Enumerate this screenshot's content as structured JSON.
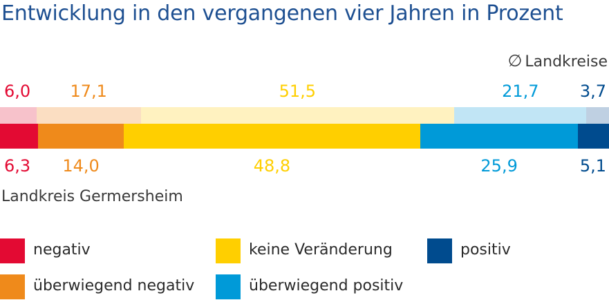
{
  "chart_data": {
    "type": "bar",
    "orientation": "horizontal-stacked-100",
    "title": "Entwicklung in den vergangenen vier Jahren in Prozent",
    "unit": "Prozent",
    "categories": [
      "negativ",
      "überwiegend negativ",
      "keine Veränderung",
      "überwiegend positiv",
      "positiv"
    ],
    "series": [
      {
        "name": "Landkreis Germersheim",
        "values": [
          6.3,
          14.0,
          48.8,
          25.9,
          5.1
        ],
        "labels": [
          "6,3",
          "14,0",
          "48,8",
          "25,9",
          "5,1"
        ]
      },
      {
        "name": "Ø Landkreise",
        "values": [
          6.0,
          17.1,
          51.5,
          21.7,
          3.7
        ],
        "labels": [
          "6,0",
          "17,1",
          "51,5",
          "21,7",
          "3,7"
        ]
      }
    ],
    "legend": "bottom",
    "grid": false
  },
  "labels": {
    "reference_symbol": "∅",
    "reference_text": "Landkreise",
    "region": "Landkreis Germersheim"
  },
  "colors": {
    "main": [
      "#e30a33",
      "#ef8a1b",
      "#ffcf00",
      "#009ad8",
      "#004b8e"
    ],
    "reference": [
      "#f7c2cb",
      "#fbdec2",
      "#fff2c0",
      "#c1e5f5",
      "#bfd0e2"
    ],
    "title": "#1d4f91"
  },
  "legend_items": [
    {
      "label": "negativ",
      "color": "#e30a33"
    },
    {
      "label": "keine Veränderung",
      "color": "#ffcf00"
    },
    {
      "label": "positiv",
      "color": "#004b8e"
    },
    {
      "label": "überwiegend negativ",
      "color": "#ef8a1b"
    },
    {
      "label": "überwiegend positiv",
      "color": "#009ad8"
    }
  ]
}
